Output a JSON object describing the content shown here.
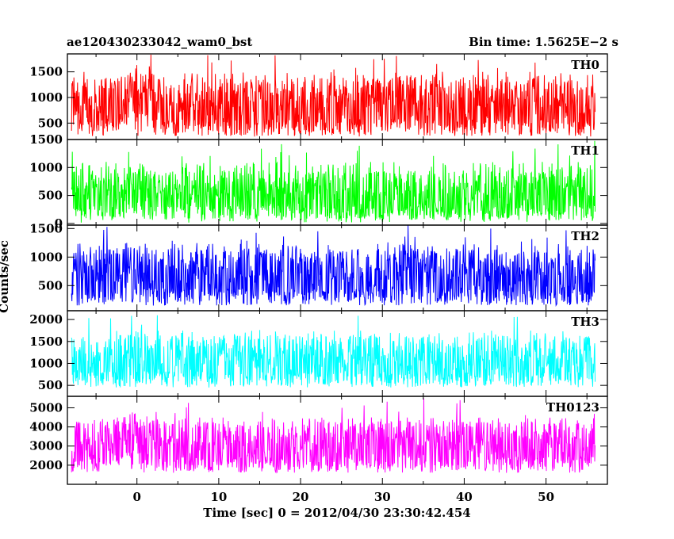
{
  "header": {
    "left_title": "ae120430233042_wam0_bst",
    "right_title": "Bin time: 1.5625E−2 s"
  },
  "chart_data": {
    "type": "line",
    "xlabel": "Time [sec] 0 = 2012/04/30 23:30:42.454",
    "ylabel": "Counts/sec",
    "x_range": [
      -8.5,
      57.5
    ],
    "x_data_range": [
      -8.0,
      56.0
    ],
    "x_ticks": [
      0,
      10,
      20,
      30,
      40,
      50
    ],
    "panels": [
      {
        "name": "TH0",
        "color": "#ff0000",
        "ylim": [
          180,
          1850
        ],
        "y_ticks": [
          500,
          1000,
          1500
        ],
        "mean": 800,
        "low": 250,
        "high": 1500,
        "peak": 1850,
        "burst_center": 0,
        "burst_level": 1050
      },
      {
        "name": "TH1",
        "color": "#00ff00",
        "ylim": [
          -30,
          1500
        ],
        "y_ticks": [
          0,
          500,
          1000,
          1500
        ],
        "mean": 480,
        "low": 60,
        "high": 1100,
        "peak": 1480,
        "burst_center": 0,
        "burst_level": 620
      },
      {
        "name": "TH2",
        "color": "#0000ff",
        "ylim": [
          60,
          1560
        ],
        "y_ticks": [
          500,
          1000,
          1500
        ],
        "mean": 650,
        "low": 150,
        "high": 1250,
        "peak": 1560,
        "burst_center": 0,
        "burst_level": 700
      },
      {
        "name": "TH3",
        "color": "#00ffff",
        "ylim": [
          250,
          2200
        ],
        "y_ticks": [
          500,
          1000,
          1500,
          2000
        ],
        "mean": 1050,
        "low": 450,
        "high": 1750,
        "peak": 2200,
        "burst_center": 0,
        "burst_level": 1100
      },
      {
        "name": "TH0123",
        "color": "#ff00ff",
        "ylim": [
          1000,
          5600
        ],
        "y_ticks": [
          2000,
          3000,
          4000,
          5000
        ],
        "mean": 3000,
        "low": 1600,
        "high": 4500,
        "peak": 5500,
        "burst_center": 0,
        "burst_level": 3500
      }
    ]
  }
}
